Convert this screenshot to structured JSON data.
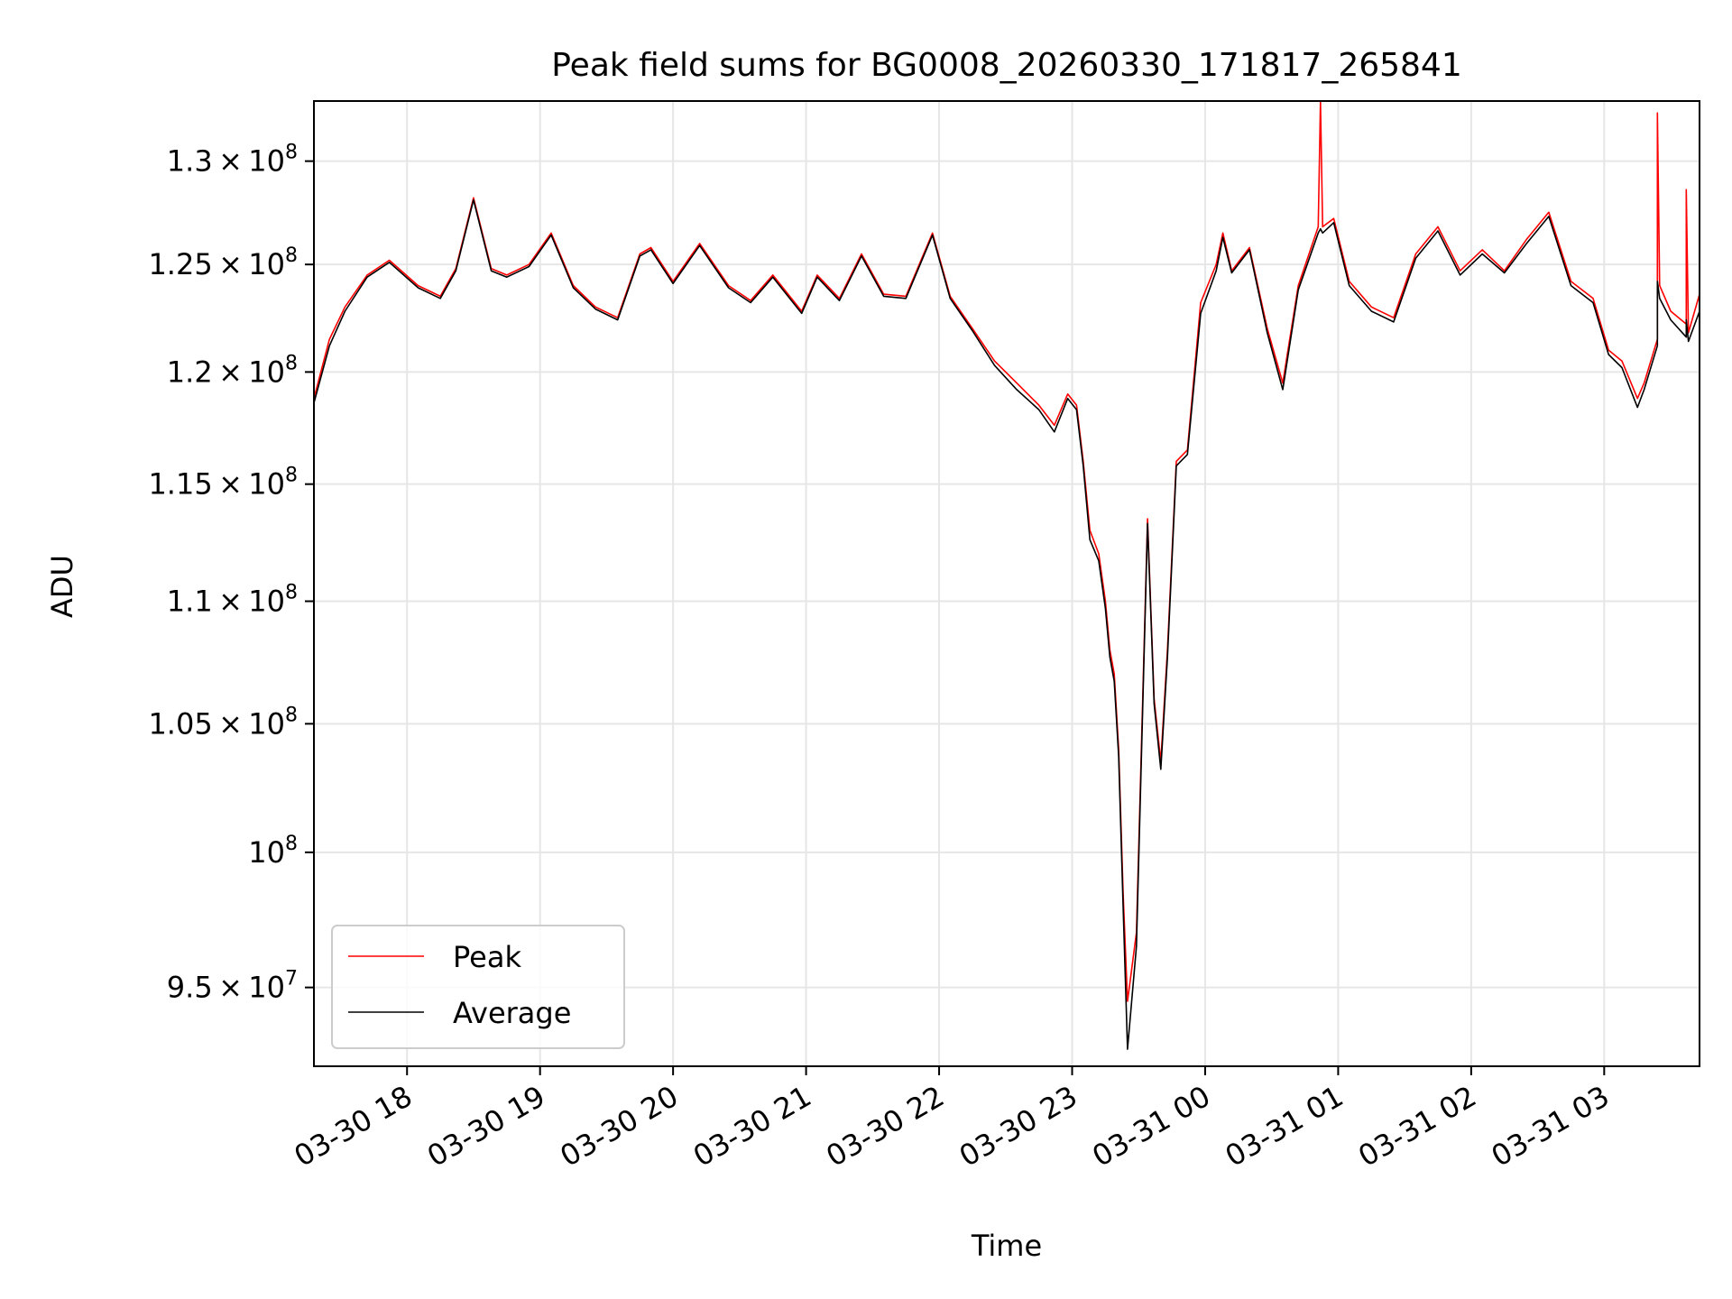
{
  "chart_data": {
    "type": "line",
    "title": "Peak field sums for BG0008_20260330_171817_265841",
    "xlabel": "Time",
    "ylabel": "ADU",
    "yscale": "log",
    "grid": true,
    "legend_position": "lower-left",
    "xlim": [
      "2026-03-30T17:18",
      "2026-03-31T03:43"
    ],
    "ylim": [
      92200000,
      133000000
    ],
    "x_ticks": [
      {
        "value": "2026-03-30T18:00",
        "label": "03-30 18"
      },
      {
        "value": "2026-03-30T19:00",
        "label": "03-30 19"
      },
      {
        "value": "2026-03-30T20:00",
        "label": "03-30 20"
      },
      {
        "value": "2026-03-30T21:00",
        "label": "03-30 21"
      },
      {
        "value": "2026-03-30T22:00",
        "label": "03-30 22"
      },
      {
        "value": "2026-03-30T23:00",
        "label": "03-30 23"
      },
      {
        "value": "2026-03-31T00:00",
        "label": "03-31 00"
      },
      {
        "value": "2026-03-31T01:00",
        "label": "03-31 01"
      },
      {
        "value": "2026-03-31T02:00",
        "label": "03-31 02"
      },
      {
        "value": "2026-03-31T03:00",
        "label": "03-31 03"
      }
    ],
    "y_ticks": [
      {
        "value": 95000000,
        "mantissa": "9.5",
        "exp": "7"
      },
      {
        "value": 100000000,
        "mantissa": "",
        "exp": "8"
      },
      {
        "value": 105000000,
        "mantissa": "1.05",
        "exp": "8"
      },
      {
        "value": 110000000,
        "mantissa": "1.1",
        "exp": "8"
      },
      {
        "value": 115000000,
        "mantissa": "1.15",
        "exp": "8"
      },
      {
        "value": 120000000,
        "mantissa": "1.2",
        "exp": "8"
      },
      {
        "value": 125000000,
        "mantissa": "1.25",
        "exp": "8"
      },
      {
        "value": 130000000,
        "mantissa": "1.3",
        "exp": "8"
      }
    ],
    "series": [
      {
        "name": "Peak",
        "color": "#ff0000",
        "x": [
          "2026-03-30T17:18",
          "2026-03-30T17:25",
          "2026-03-30T17:32",
          "2026-03-30T17:42",
          "2026-03-30T17:52",
          "2026-03-30T18:05",
          "2026-03-30T18:15",
          "2026-03-30T18:22",
          "2026-03-30T18:30",
          "2026-03-30T18:38",
          "2026-03-30T18:45",
          "2026-03-30T18:55",
          "2026-03-30T19:05",
          "2026-03-30T19:15",
          "2026-03-30T19:25",
          "2026-03-30T19:35",
          "2026-03-30T19:45",
          "2026-03-30T19:50",
          "2026-03-30T20:00",
          "2026-03-30T20:12",
          "2026-03-30T20:25",
          "2026-03-30T20:35",
          "2026-03-30T20:45",
          "2026-03-30T20:58",
          "2026-03-30T21:05",
          "2026-03-30T21:15",
          "2026-03-30T21:25",
          "2026-03-30T21:35",
          "2026-03-30T21:45",
          "2026-03-30T21:57",
          "2026-03-30T22:05",
          "2026-03-30T22:15",
          "2026-03-30T22:25",
          "2026-03-30T22:35",
          "2026-03-30T22:45",
          "2026-03-30T22:52",
          "2026-03-30T22:58",
          "2026-03-30T23:02",
          "2026-03-30T23:05",
          "2026-03-30T23:08",
          "2026-03-30T23:12",
          "2026-03-30T23:15",
          "2026-03-30T23:17",
          "2026-03-30T23:19",
          "2026-03-30T23:21",
          "2026-03-30T23:23",
          "2026-03-30T23:25",
          "2026-03-30T23:29",
          "2026-03-30T23:34",
          "2026-03-30T23:37",
          "2026-03-30T23:40",
          "2026-03-30T23:43",
          "2026-03-30T23:47",
          "2026-03-30T23:52",
          "2026-03-30T23:58",
          "2026-03-31T00:05",
          "2026-03-31T00:08",
          "2026-03-31T00:12",
          "2026-03-31T00:20",
          "2026-03-31T00:28",
          "2026-03-31T00:35",
          "2026-03-31T00:42",
          "2026-03-31T00:51",
          "2026-03-31T00:52",
          "2026-03-31T00:53",
          "2026-03-31T00:58",
          "2026-03-31T01:05",
          "2026-03-31T01:15",
          "2026-03-31T01:25",
          "2026-03-31T01:35",
          "2026-03-31T01:45",
          "2026-03-31T01:55",
          "2026-03-31T02:05",
          "2026-03-31T02:15",
          "2026-03-31T02:25",
          "2026-03-31T02:35",
          "2026-03-31T02:45",
          "2026-03-31T02:55",
          "2026-03-31T03:02",
          "2026-03-31T03:08",
          "2026-03-31T03:15",
          "2026-03-31T03:18",
          "2026-03-31T03:24",
          "2026-03-31T03:24",
          "2026-03-31T03:25",
          "2026-03-31T03:30",
          "2026-03-31T03:37",
          "2026-03-31T03:37",
          "2026-03-31T03:38",
          "2026-03-31T03:43"
        ],
        "values": [
          118800000,
          121500000,
          123000000,
          124500000,
          125200000,
          124000000,
          123500000,
          124800000,
          128200000,
          124800000,
          124500000,
          125000000,
          126500000,
          124000000,
          123000000,
          122500000,
          125500000,
          125800000,
          124200000,
          126000000,
          124000000,
          123300000,
          124500000,
          122800000,
          124500000,
          123400000,
          125500000,
          123600000,
          123500000,
          126500000,
          123500000,
          122000000,
          120500000,
          119500000,
          118500000,
          117600000,
          119000000,
          118500000,
          116000000,
          113000000,
          112000000,
          110000000,
          108000000,
          107000000,
          104000000,
          98500000,
          94500000,
          97000000,
          113500000,
          106000000,
          103500000,
          108000000,
          116000000,
          116500000,
          123200000,
          125000000,
          126500000,
          124700000,
          125800000,
          122000000,
          119500000,
          124000000,
          126800000,
          133000000,
          126800000,
          127200000,
          124200000,
          123000000,
          122500000,
          125500000,
          126800000,
          124700000,
          125700000,
          124700000,
          126200000,
          127500000,
          124200000,
          123400000,
          121000000,
          120500000,
          118800000,
          119500000,
          121500000,
          132400000,
          124000000,
          122800000,
          122200000,
          128600000,
          121800000,
          123600000
        ]
      },
      {
        "name": "Average",
        "color": "#000000",
        "x": [
          "2026-03-30T17:18",
          "2026-03-30T17:25",
          "2026-03-30T17:32",
          "2026-03-30T17:42",
          "2026-03-30T17:52",
          "2026-03-30T18:05",
          "2026-03-30T18:15",
          "2026-03-30T18:22",
          "2026-03-30T18:30",
          "2026-03-30T18:38",
          "2026-03-30T18:45",
          "2026-03-30T18:55",
          "2026-03-30T19:05",
          "2026-03-30T19:15",
          "2026-03-30T19:25",
          "2026-03-30T19:35",
          "2026-03-30T19:45",
          "2026-03-30T19:50",
          "2026-03-30T20:00",
          "2026-03-30T20:12",
          "2026-03-30T20:25",
          "2026-03-30T20:35",
          "2026-03-30T20:45",
          "2026-03-30T20:58",
          "2026-03-30T21:05",
          "2026-03-30T21:15",
          "2026-03-30T21:25",
          "2026-03-30T21:35",
          "2026-03-30T21:45",
          "2026-03-30T21:57",
          "2026-03-30T22:05",
          "2026-03-30T22:15",
          "2026-03-30T22:25",
          "2026-03-30T22:35",
          "2026-03-30T22:45",
          "2026-03-30T22:52",
          "2026-03-30T22:58",
          "2026-03-30T23:02",
          "2026-03-30T23:05",
          "2026-03-30T23:08",
          "2026-03-30T23:12",
          "2026-03-30T23:15",
          "2026-03-30T23:17",
          "2026-03-30T23:19",
          "2026-03-30T23:21",
          "2026-03-30T23:23",
          "2026-03-30T23:25",
          "2026-03-30T23:29",
          "2026-03-30T23:34",
          "2026-03-30T23:37",
          "2026-03-30T23:40",
          "2026-03-30T23:43",
          "2026-03-30T23:47",
          "2026-03-30T23:52",
          "2026-03-30T23:58",
          "2026-03-31T00:05",
          "2026-03-31T00:08",
          "2026-03-31T00:12",
          "2026-03-31T00:20",
          "2026-03-31T00:28",
          "2026-03-31T00:35",
          "2026-03-31T00:42",
          "2026-03-31T00:51",
          "2026-03-31T00:52",
          "2026-03-31T00:53",
          "2026-03-31T00:58",
          "2026-03-31T01:05",
          "2026-03-31T01:15",
          "2026-03-31T01:25",
          "2026-03-31T01:35",
          "2026-03-31T01:45",
          "2026-03-31T01:55",
          "2026-03-31T02:05",
          "2026-03-31T02:15",
          "2026-03-31T02:25",
          "2026-03-31T02:35",
          "2026-03-31T02:45",
          "2026-03-31T02:55",
          "2026-03-31T03:02",
          "2026-03-31T03:08",
          "2026-03-31T03:15",
          "2026-03-31T03:18",
          "2026-03-31T03:24",
          "2026-03-31T03:24",
          "2026-03-31T03:25",
          "2026-03-31T03:30",
          "2026-03-31T03:37",
          "2026-03-31T03:37",
          "2026-03-31T03:38",
          "2026-03-31T03:43"
        ],
        "values": [
          118600000,
          121200000,
          122800000,
          124400000,
          125100000,
          123900000,
          123400000,
          124700000,
          128100000,
          124700000,
          124400000,
          124900000,
          126400000,
          123900000,
          122900000,
          122400000,
          125400000,
          125700000,
          124100000,
          125900000,
          123900000,
          123200000,
          124400000,
          122700000,
          124400000,
          123300000,
          125400000,
          123500000,
          123400000,
          126400000,
          123400000,
          121900000,
          120300000,
          119200000,
          118300000,
          117300000,
          118800000,
          118300000,
          115800000,
          112600000,
          111700000,
          109700000,
          107700000,
          106700000,
          103700000,
          98000000,
          92800000,
          96500000,
          113300000,
          105800000,
          103200000,
          107700000,
          115800000,
          116300000,
          122700000,
          124700000,
          126300000,
          124600000,
          125700000,
          121800000,
          119200000,
          123800000,
          126500000,
          126700000,
          126500000,
          127000000,
          124000000,
          122800000,
          122300000,
          125300000,
          126600000,
          124500000,
          125500000,
          124600000,
          126000000,
          127300000,
          124000000,
          123200000,
          120800000,
          120200000,
          118400000,
          119200000,
          121200000,
          124200000,
          123400000,
          122400000,
          121600000,
          122400000,
          121400000,
          122800000
        ]
      }
    ]
  }
}
